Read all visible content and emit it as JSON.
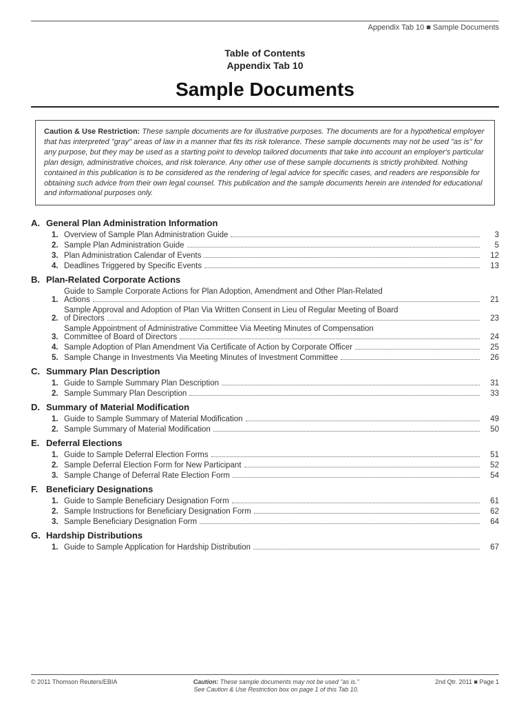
{
  "header": {
    "right": "Appendix Tab 10 ■ Sample Documents"
  },
  "pretitle_line1": "Table of Contents",
  "pretitle_line2": "Appendix Tab 10",
  "title": "Sample Documents",
  "caution": {
    "lead": "Caution & Use Restriction:",
    "body": "These sample documents are for illustrative purposes. The documents are for a hypothetical employer that has interpreted \"gray\" areas of law in a manner that fits its risk tolerance. These sample documents may not be used \"as is\" for any purpose, but they may be used as a starting point to develop tailored documents that take into account an employer's particular plan design, administrative choices, and risk tolerance. Any other use of these sample documents is strictly prohibited. Nothing contained in this publication is to be considered as the rendering of legal advice for specific cases, and readers are responsible for obtaining such advice from their own legal counsel. This publication and the sample documents herein are intended for educational and informational purposes only."
  },
  "sections": [
    {
      "letter": "A.",
      "title": "General Plan Administration Information",
      "items": [
        {
          "n": "1.",
          "label": "Overview of Sample Plan Administration Guide",
          "page": "3"
        },
        {
          "n": "2.",
          "label": "Sample Plan Administration Guide",
          "page": "5"
        },
        {
          "n": "3.",
          "label": "Plan Administration Calendar of Events",
          "page": "12"
        },
        {
          "n": "4.",
          "label": "Deadlines Triggered by Specific Events",
          "page": "13"
        }
      ]
    },
    {
      "letter": "B.",
      "title": "Plan-Related Corporate Actions",
      "items": [
        {
          "n": "1.",
          "label": "Guide to Sample Corporate Actions for Plan Adoption, Amendment and Other Plan-Related",
          "cont": "Actions",
          "page": "21",
          "multi": true
        },
        {
          "n": "2.",
          "label": "Sample Approval and Adoption of Plan Via Written Consent in Lieu of Regular Meeting of Board",
          "cont": "of Directors",
          "page": "23",
          "multi": true
        },
        {
          "n": "3.",
          "label": "Sample Appointment of Administrative Committee Via Meeting Minutes of Compensation",
          "cont": "Committee of Board of Directors",
          "page": "24",
          "multi": true
        },
        {
          "n": "4.",
          "label": "Sample Adoption of Plan Amendment Via Certificate of Action by Corporate Officer",
          "page": "25"
        },
        {
          "n": "5.",
          "label": "Sample Change in Investments Via Meeting Minutes of Investment Committee",
          "page": "26"
        }
      ]
    },
    {
      "letter": "C.",
      "title": "Summary Plan Description",
      "items": [
        {
          "n": "1.",
          "label": "Guide to Sample Summary Plan Description",
          "page": "31"
        },
        {
          "n": "2.",
          "label": "Sample Summary Plan Description",
          "page": "33"
        }
      ]
    },
    {
      "letter": "D.",
      "title": "Summary of Material Modification",
      "items": [
        {
          "n": "1.",
          "label": "Guide to Sample Summary of Material Modification",
          "page": "49"
        },
        {
          "n": "2.",
          "label": "Sample Summary of Material Modification",
          "page": "50"
        }
      ]
    },
    {
      "letter": "E.",
      "title": "Deferral Elections",
      "items": [
        {
          "n": "1.",
          "label": "Guide to Sample Deferral Election Forms",
          "page": "51"
        },
        {
          "n": "2.",
          "label": "Sample Deferral Election Form for New Participant",
          "page": "52"
        },
        {
          "n": "3.",
          "label": "Sample Change of Deferral Rate Election Form",
          "page": "54"
        }
      ]
    },
    {
      "letter": "F.",
      "title": "Beneficiary Designations",
      "items": [
        {
          "n": "1.",
          "label": "Guide to Sample Beneficiary Designation Form",
          "page": "61"
        },
        {
          "n": "2.",
          "label": "Sample Instructions for Beneficiary Designation Form",
          "page": "62"
        },
        {
          "n": "3.",
          "label": "Sample Beneficiary Designation Form",
          "page": "64"
        }
      ]
    },
    {
      "letter": "G.",
      "title": "Hardship Distributions",
      "items": [
        {
          "n": "1.",
          "label": "Guide to Sample Application for Hardship Distribution",
          "page": "67"
        }
      ]
    }
  ],
  "footer": {
    "left": "© 2011 Thomson Reuters/EBIA",
    "center_bold": "Caution:",
    "center_1": "These sample documents may not be used \"as is.\"",
    "center_2": "See Caution & Use Restriction box on page 1 of this Tab 10.",
    "right": "2nd Qtr. 2011 ■ Page 1"
  },
  "colors": {
    "text": "#333333",
    "rule": "#555555",
    "background": "#ffffff"
  }
}
